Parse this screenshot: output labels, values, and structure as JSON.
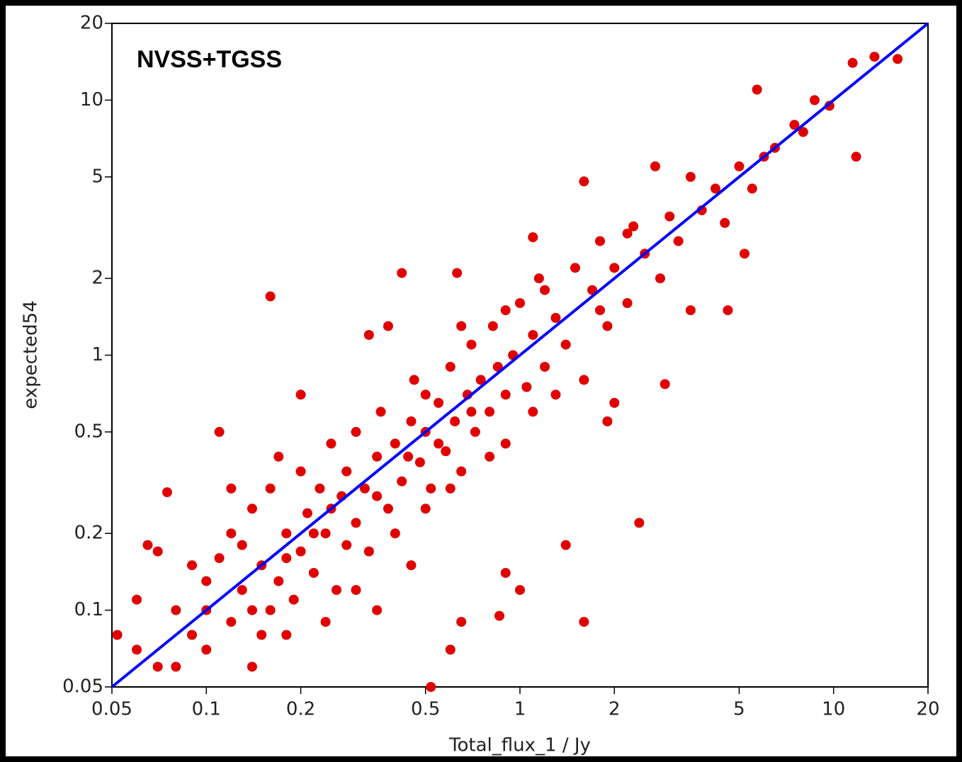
{
  "chart_data": {
    "type": "scatter",
    "annotation": "NVSS+TGSS",
    "xlabel": "Total_flux_1 / Jy",
    "ylabel": "expected54",
    "xlog": true,
    "ylog": true,
    "xlim": [
      0.05,
      20
    ],
    "ylim": [
      0.05,
      20
    ],
    "xticks": [
      0.05,
      0.1,
      0.2,
      0.5,
      1,
      2,
      5,
      10,
      20
    ],
    "yticks": [
      0.05,
      0.1,
      0.2,
      0.5,
      1,
      2,
      5,
      10,
      20
    ],
    "color": "#e00000",
    "x": [
      16,
      13.5,
      11.5,
      5.7,
      8.7,
      9.7,
      11.8,
      0.16,
      0.42,
      0.63,
      1.6,
      2.4,
      1.6,
      1.4,
      0.075,
      5.2,
      4.6,
      3.5,
      2.9,
      1.1,
      0.33,
      0.38,
      0.2,
      0.11,
      0.06,
      0.052,
      0.6,
      0.52,
      0.07,
      0.065,
      0.9,
      1.0,
      0.86,
      0.65,
      2.0,
      1.9,
      0.06,
      0.07,
      0.08,
      0.09,
      0.1,
      0.1,
      0.11,
      0.12,
      0.12,
      0.13,
      0.14,
      0.14,
      0.15,
      0.15,
      0.16,
      0.17,
      0.18,
      0.19,
      0.2,
      0.2,
      0.21,
      0.22,
      0.23,
      0.24,
      0.25,
      0.26,
      0.27,
      0.28,
      0.3,
      0.3,
      0.32,
      0.33,
      0.35,
      0.36,
      0.38,
      0.4,
      0.42,
      0.45,
      0.46,
      0.48,
      0.5,
      0.52,
      0.55,
      0.58,
      0.6,
      0.62,
      0.65,
      0.68,
      0.7,
      0.72,
      0.75,
      0.8,
      0.82,
      0.85,
      0.9,
      0.95,
      1.0,
      1.05,
      1.1,
      1.15,
      1.2,
      1.3,
      1.4,
      1.5,
      1.6,
      1.7,
      1.8,
      1.9,
      2.0,
      2.2,
      2.3,
      2.5,
      2.7,
      2.8,
      3.0,
      3.2,
      3.5,
      3.8,
      4.2,
      4.5,
      5.0,
      5.5,
      6.0,
      6.5,
      7.5,
      8.0,
      0.09,
      0.1,
      0.13,
      0.16,
      0.18,
      0.22,
      0.25,
      0.28,
      0.35,
      0.4,
      0.44,
      0.5,
      0.55,
      0.6,
      0.7,
      0.8,
      0.9,
      1.1,
      1.3,
      0.65,
      0.9,
      1.2,
      1.8,
      2.2,
      0.3,
      0.45,
      0.5,
      0.18,
      0.08,
      0.14,
      0.24,
      0.35,
      0.12,
      0.17
    ],
    "values": [
      14.5,
      14.8,
      14,
      11,
      10,
      9.5,
      6,
      1.7,
      2.1,
      2.1,
      4.8,
      0.22,
      0.09,
      0.18,
      0.29,
      2.5,
      1.5,
      1.5,
      0.77,
      2.9,
      1.2,
      1.3,
      0.7,
      0.5,
      0.11,
      0.08,
      0.07,
      0.05,
      0.17,
      0.18,
      0.14,
      0.12,
      0.095,
      0.09,
      0.65,
      0.55,
      0.07,
      0.06,
      0.1,
      0.08,
      0.13,
      0.07,
      0.16,
      0.09,
      0.2,
      0.12,
      0.1,
      0.25,
      0.15,
      0.08,
      0.3,
      0.13,
      0.2,
      0.11,
      0.35,
      0.17,
      0.24,
      0.14,
      0.3,
      0.2,
      0.45,
      0.12,
      0.28,
      0.35,
      0.22,
      0.5,
      0.3,
      0.17,
      0.4,
      0.6,
      0.25,
      0.45,
      0.32,
      0.55,
      0.8,
      0.38,
      0.5,
      0.3,
      0.65,
      0.42,
      0.9,
      0.55,
      0.35,
      0.7,
      1.1,
      0.5,
      0.8,
      0.6,
      1.3,
      0.9,
      0.45,
      1.0,
      1.6,
      0.75,
      1.2,
      2.0,
      0.9,
      1.4,
      1.1,
      2.2,
      0.8,
      1.8,
      2.8,
      1.3,
      2.2,
      1.6,
      3.2,
      2.5,
      5.5,
      2.0,
      3.5,
      2.8,
      5.0,
      3.7,
      4.5,
      3.3,
      5.5,
      4.5,
      6.0,
      6.5,
      8,
      7.5,
      0.15,
      0.1,
      0.18,
      0.1,
      0.16,
      0.2,
      0.25,
      0.18,
      0.28,
      0.2,
      0.4,
      0.7,
      0.45,
      0.3,
      0.6,
      0.4,
      0.7,
      0.6,
      0.7,
      1.3,
      1.5,
      1.8,
      1.5,
      3.0,
      0.12,
      0.15,
      0.25,
      0.08,
      0.06,
      0.06,
      0.09,
      0.1,
      0.3,
      0.4
    ],
    "reference_line": {
      "x": [
        0.05,
        20
      ],
      "values": [
        0.05,
        20
      ],
      "color": "#0000ff"
    }
  }
}
